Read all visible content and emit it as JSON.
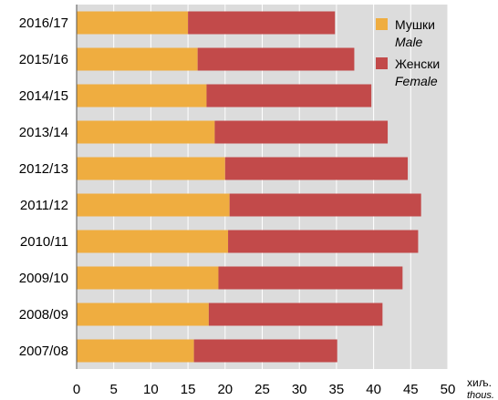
{
  "chart_data": {
    "type": "bar",
    "orientation": "horizontal",
    "stacked": true,
    "categories": [
      "2016/17",
      "2015/16",
      "2014/15",
      "2013/14",
      "2012/13",
      "2011/12",
      "2010/11",
      "2009/10",
      "2008/09",
      "2007/08"
    ],
    "series": [
      {
        "name": "Мушки",
        "name_sub": "Male",
        "color": "#efad40",
        "values": [
          15.0,
          16.3,
          17.5,
          18.6,
          20.0,
          20.6,
          20.4,
          19.1,
          17.8,
          15.8
        ]
      },
      {
        "name": "Женски",
        "name_sub": "Female",
        "color": "#c24a4a",
        "values": [
          19.8,
          21.1,
          22.2,
          23.3,
          24.6,
          25.8,
          25.6,
          24.8,
          23.4,
          19.3
        ]
      }
    ],
    "xlim": [
      0,
      50
    ],
    "xticks": [
      0,
      5,
      10,
      15,
      20,
      25,
      30,
      35,
      40,
      45,
      50
    ],
    "x_unit": "хиљ.",
    "x_unit_sub": "thous.",
    "grid": "vertical",
    "background": "#dcdcdc",
    "legend_position": "top-right"
  }
}
